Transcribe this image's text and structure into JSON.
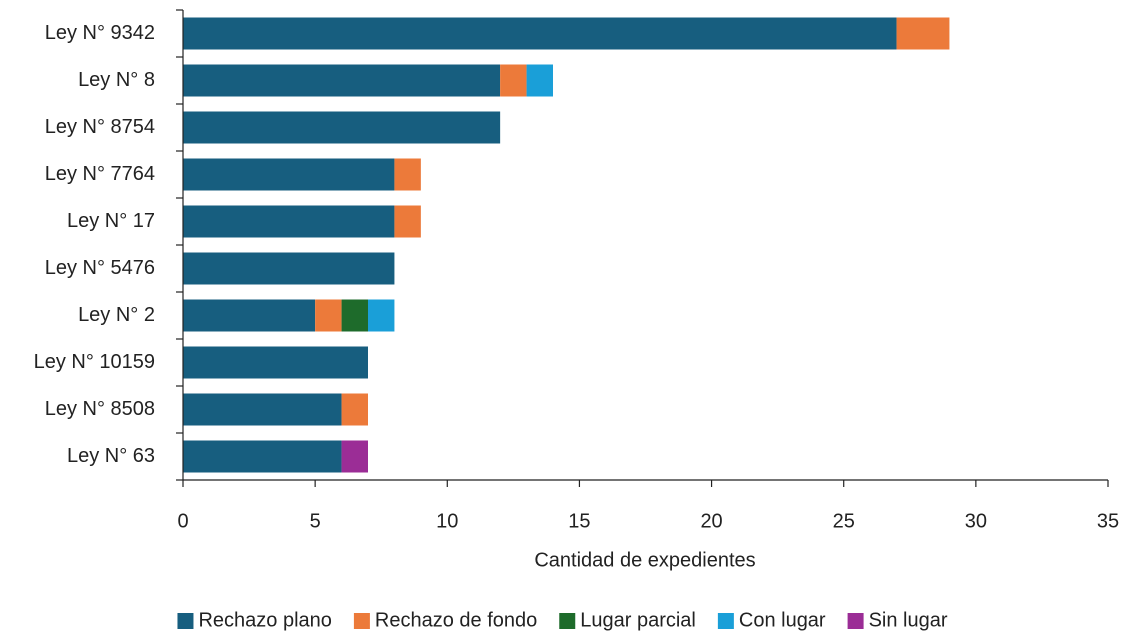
{
  "chart_data": {
    "type": "stacked_barh",
    "categories": [
      "Ley N° 9342",
      "Ley N° 8",
      "Ley N° 8754",
      "Ley N° 7764",
      "Ley N° 17",
      "Ley N° 5476",
      "Ley N° 2",
      "Ley N° 10159",
      "Ley N° 8508",
      "Ley N° 63"
    ],
    "series": [
      {
        "name": "Rechazo plano",
        "color": "#175e7f",
        "values": [
          27,
          12,
          12,
          8,
          8,
          8,
          5,
          7,
          6,
          6
        ]
      },
      {
        "name": "Rechazo de fondo",
        "color": "#ec7a3a",
        "values": [
          2,
          1,
          0,
          1,
          1,
          0,
          1,
          0,
          1,
          0
        ]
      },
      {
        "name": "Lugar parcial",
        "color": "#1e6b2b",
        "values": [
          0,
          0,
          0,
          0,
          0,
          0,
          1,
          0,
          0,
          0
        ]
      },
      {
        "name": "Con lugar",
        "color": "#1a9fd8",
        "values": [
          0,
          1,
          0,
          0,
          0,
          0,
          1,
          0,
          0,
          0
        ]
      },
      {
        "name": "Sin lugar",
        "color": "#9b2d96",
        "values": [
          0,
          0,
          0,
          0,
          0,
          0,
          0,
          0,
          0,
          1
        ]
      }
    ],
    "xlabel": "Cantidad de expedientes",
    "xlim": [
      0,
      35
    ],
    "xticks": [
      0,
      5,
      10,
      15,
      20,
      25,
      30,
      35
    ],
    "legend": "bottom"
  }
}
